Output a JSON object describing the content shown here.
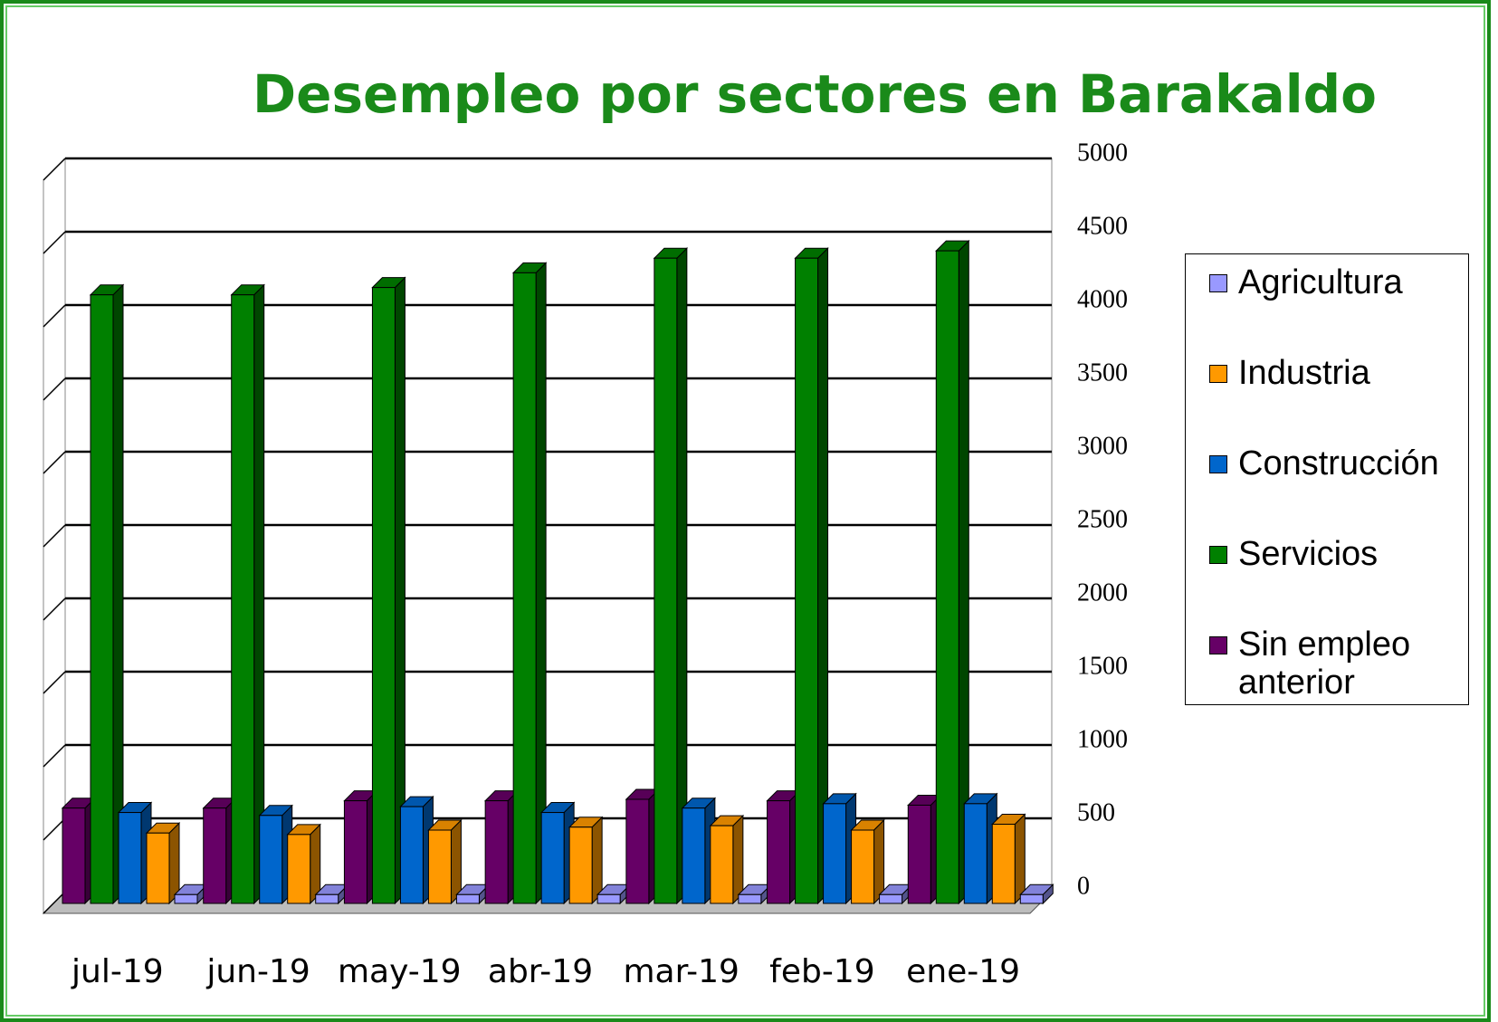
{
  "chart_data": {
    "type": "bar3d",
    "title": "Desempleo por sectores en Barakaldo",
    "categories": [
      "jul-19",
      "jun-19",
      "may-19",
      "abr-19",
      "mar-19",
      "feb-19",
      "ene-19"
    ],
    "series": [
      {
        "name": "Agricultura",
        "color": "#9999ff",
        "values": [
          60,
          60,
          60,
          60,
          60,
          60,
          60
        ]
      },
      {
        "name": "Industria",
        "color": "#ff9900",
        "values": [
          480,
          470,
          500,
          520,
          530,
          500,
          540
        ]
      },
      {
        "name": "Construcción",
        "color": "#0066cc",
        "values": [
          620,
          600,
          660,
          620,
          650,
          680,
          680
        ]
      },
      {
        "name": "Servicios",
        "color": "#008000",
        "values": [
          4150,
          4150,
          4200,
          4300,
          4400,
          4400,
          4450
        ]
      },
      {
        "name": "Sin empleo anterior",
        "color": "#660066",
        "values": [
          650,
          650,
          700,
          700,
          710,
          700,
          670
        ]
      }
    ],
    "ylim": [
      0,
      5000
    ],
    "yticks": [
      0,
      500,
      1000,
      1500,
      2000,
      2500,
      3000,
      3500,
      4000,
      4500,
      5000
    ],
    "grid": true
  }
}
